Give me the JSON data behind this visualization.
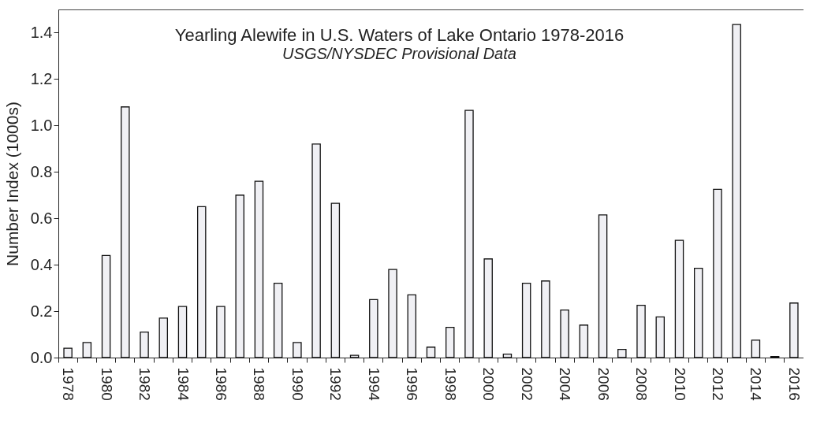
{
  "chart_data": {
    "type": "bar",
    "title": "Yearling Alewife in U.S. Waters of Lake Ontario 1978-2016",
    "subtitle": "USGS/NYSDEC Provisional Data",
    "ylabel": "Number Index (1000s)",
    "categories": [
      "1978",
      null,
      "1980",
      null,
      "1982",
      null,
      "1984",
      null,
      "1986",
      null,
      "1988",
      null,
      "1990",
      null,
      "1992",
      null,
      "1994",
      null,
      "1996",
      null,
      "1998",
      null,
      "2000",
      null,
      "2002",
      null,
      "2004",
      null,
      "2006",
      null,
      "2008",
      null,
      "2010",
      null,
      "2012",
      null,
      "2014",
      null,
      "2016"
    ],
    "series": [
      {
        "color": "#f0f0f4",
        "values": [
          0.04,
          0.065,
          0.44,
          1.08,
          0.11,
          0.17,
          0.22,
          0.65,
          0.22,
          0.7,
          0.76,
          0.32,
          0.065,
          0.92,
          0.665,
          0.01,
          0.25,
          0.38,
          0.27,
          0.045,
          0.13,
          1.065,
          0.425,
          0.015,
          0.32,
          0.33,
          0.205,
          0.14,
          0.615,
          0.035,
          0.225,
          0.175,
          0.505,
          0.385,
          0.725,
          1.435,
          0.075,
          0.005,
          0.235
        ]
      }
    ],
    "ylim": [
      0,
      1.5
    ],
    "yticks": [
      {
        "value": 0,
        "label": "0.0"
      },
      0.2,
      0.4,
      0.6,
      0.8,
      {
        "value": 1,
        "label": "1.0"
      },
      1.2,
      1.4
    ],
    "grid": false,
    "legend": false
  }
}
